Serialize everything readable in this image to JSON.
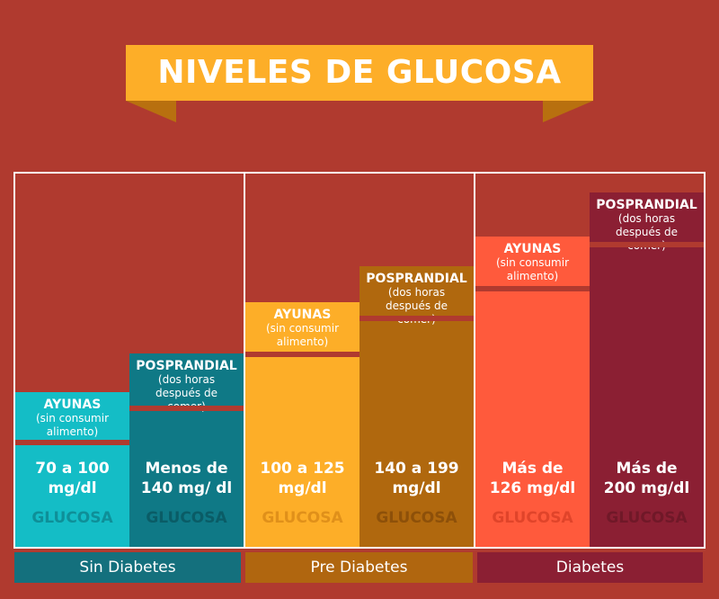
{
  "title": "NIVELES DE GLUCOSA",
  "colors": {
    "background": "#b03a2f",
    "banner": "#fdae28"
  },
  "chart_data": {
    "type": "bar",
    "title": "NIVELES DE GLUCOSA",
    "categories": [
      "Sin Diabetes",
      "Pre Diabetes",
      "Diabetes"
    ],
    "bars": [
      {
        "group": "Sin Diabetes",
        "kind": "AYUNAS",
        "note": "(sin consumir alimento)",
        "value_line1": "70 a 100",
        "value_line2": "mg/dl",
        "glucosa": "GLUCOSA",
        "color": "#14bdc6",
        "glu_color": "#0e8f98"
      },
      {
        "group": "Sin Diabetes",
        "kind": "POSPRANDIAL",
        "note": "(dos horas después de comer)",
        "value_line1": "Menos de",
        "value_line2": "140 mg/ dl",
        "glucosa": "GLUCOSA",
        "color": "#0f7986",
        "glu_color": "#0a5c66"
      },
      {
        "group": "Pre Diabetes",
        "kind": "AYUNAS",
        "note": "(sin consumir alimento)",
        "value_line1": "100 a 125",
        "value_line2": "mg/dl",
        "glucosa": "GLUCOSA",
        "color": "#fdae28",
        "glu_color": "#e0901a"
      },
      {
        "group": "Pre Diabetes",
        "kind": "POSPRANDIAL",
        "note": "(dos horas después de comer)",
        "value_line1": "140 a 199",
        "value_line2": "mg/dl",
        "glucosa": "GLUCOSA",
        "color": "#b0680e",
        "glu_color": "#8d5009"
      },
      {
        "group": "Diabetes",
        "kind": "AYUNAS",
        "note": "(sin consumir alimento)",
        "value_line1": "Más de",
        "value_line2": "126 mg/dl",
        "glucosa": "GLUCOSA",
        "color": "#ff5a3c",
        "glu_color": "#e0442a"
      },
      {
        "group": "Diabetes",
        "kind": "POSPRANDIAL",
        "note": "(dos horas después de comer)",
        "value_line1": "Más de",
        "value_line2": "200 mg/dl",
        "glucosa": "GLUCOSA",
        "color": "#8b1f33",
        "glu_color": "#701828"
      }
    ],
    "group_colors": [
      "#14707d",
      "#b0660f",
      "#8b1f33"
    ]
  }
}
